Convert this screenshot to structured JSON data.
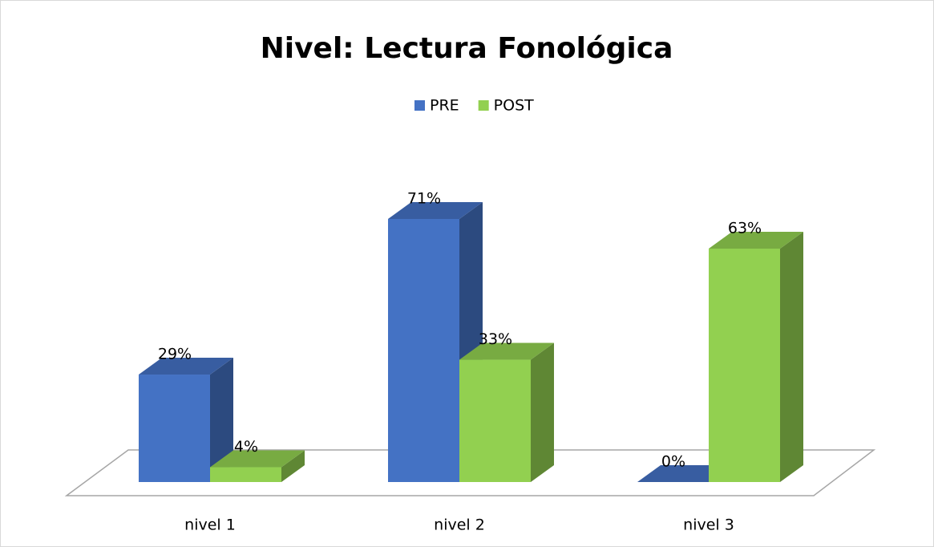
{
  "chart_data": {
    "type": "bar3d",
    "title": "Nivel: Lectura Fonológica",
    "categories": [
      "nivel 1",
      "nivel 2",
      "nivel 3"
    ],
    "series": [
      {
        "name": "PRE",
        "color": "#4472c4",
        "values": [
          29,
          71,
          0
        ],
        "value_labels": [
          "29%",
          "71%",
          "0%"
        ]
      },
      {
        "name": "POST",
        "color": "#92d050",
        "values": [
          4,
          33,
          63
        ],
        "value_labels": [
          "4%",
          "33%",
          "63%"
        ]
      }
    ],
    "legend": "top"
  }
}
